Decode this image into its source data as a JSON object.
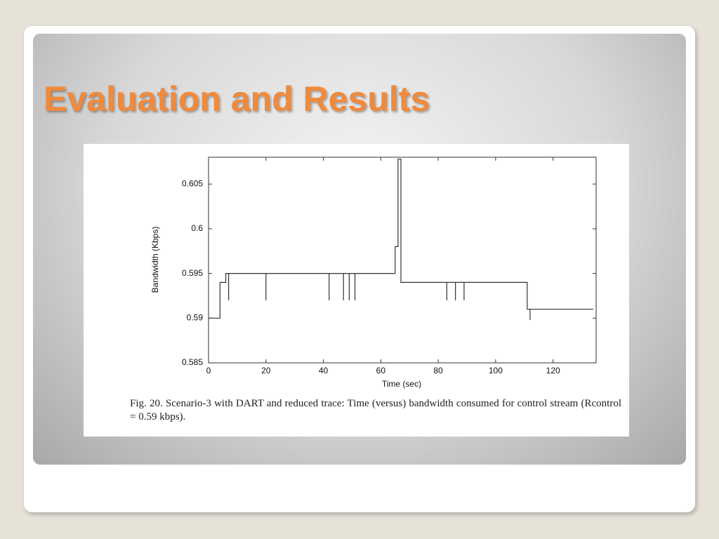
{
  "slide_title": "Evaluation and Results",
  "chart_data": {
    "type": "line",
    "xlabel": "Time (sec)",
    "ylabel": "Bandwidth (Kbps)",
    "caption": "Fig. 20.  Scenario-3 with DART and reduced trace: Time (versus) bandwidth consumed for control stream (Rcontrol = 0.59 kbps).",
    "xlim": [
      0,
      135
    ],
    "ylim": [
      0.585,
      0.608
    ],
    "xticks": [
      0,
      20,
      40,
      60,
      80,
      100,
      120
    ],
    "yticks": [
      0.585,
      0.59,
      0.595,
      0.6,
      0.605
    ],
    "series": [
      {
        "color": "#333333",
        "x": [
          0,
          4,
          4,
          6,
          6,
          7,
          7,
          7,
          20,
          20,
          20,
          42,
          42,
          42,
          47,
          47,
          47,
          49,
          49,
          49,
          51,
          51,
          51,
          65,
          65,
          66,
          66,
          67,
          67,
          83,
          83,
          83,
          86,
          86,
          86,
          89,
          89,
          89,
          111,
          111,
          112,
          112,
          112,
          134
        ],
        "values": [
          0.59,
          0.59,
          0.594,
          0.594,
          0.595,
          0.595,
          0.592,
          0.595,
          0.595,
          0.592,
          0.595,
          0.595,
          0.592,
          0.595,
          0.595,
          0.592,
          0.595,
          0.595,
          0.592,
          0.595,
          0.595,
          0.592,
          0.595,
          0.595,
          0.598,
          0.598,
          0.6078,
          0.6078,
          0.594,
          0.594,
          0.592,
          0.594,
          0.594,
          0.592,
          0.594,
          0.594,
          0.592,
          0.594,
          0.594,
          0.591,
          0.591,
          0.5898,
          0.591,
          0.591
        ]
      }
    ]
  }
}
